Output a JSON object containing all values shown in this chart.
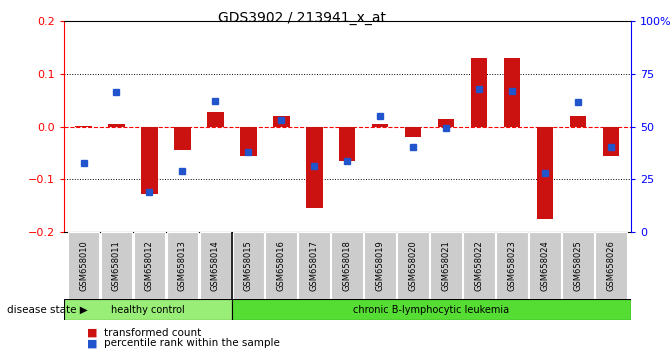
{
  "title": "GDS3902 / 213941_x_at",
  "samples": [
    "GSM658010",
    "GSM658011",
    "GSM658012",
    "GSM658013",
    "GSM658014",
    "GSM658015",
    "GSM658016",
    "GSM658017",
    "GSM658018",
    "GSM658019",
    "GSM658020",
    "GSM658021",
    "GSM658022",
    "GSM658023",
    "GSM658024",
    "GSM658025",
    "GSM658026"
  ],
  "red_bars": [
    0.002,
    0.005,
    -0.128,
    -0.045,
    0.028,
    -0.055,
    0.02,
    -0.155,
    -0.065,
    0.005,
    -0.02,
    0.015,
    0.13,
    0.13,
    -0.175,
    0.02,
    -0.055
  ],
  "blue_squares": [
    -0.07,
    0.065,
    -0.125,
    -0.085,
    0.048,
    -0.048,
    0.012,
    -0.075,
    -0.065,
    0.02,
    -0.038,
    -0.002,
    0.072,
    0.068,
    -0.088,
    0.047,
    -0.038
  ],
  "ylim_left": [
    -0.2,
    0.2
  ],
  "right_ticks": [
    0,
    25,
    50,
    75,
    100
  ],
  "left_ticks": [
    -0.2,
    -0.1,
    0.0,
    0.1,
    0.2
  ],
  "healthy_control_count": 5,
  "group1_label": "healthy control",
  "group2_label": "chronic B-lymphocytic leukemia",
  "disease_state_label": "disease state",
  "legend_red": "transformed count",
  "legend_blue": "percentile rank within the sample",
  "bar_color": "#cc1111",
  "blue_color": "#2255cc",
  "bar_width": 0.5,
  "bg_color_healthy": "#99ee77",
  "bg_color_leukemia": "#55dd33",
  "label_bg": "#cccccc",
  "title_fontsize": 10,
  "axis_fontsize": 8,
  "label_fontsize": 6
}
